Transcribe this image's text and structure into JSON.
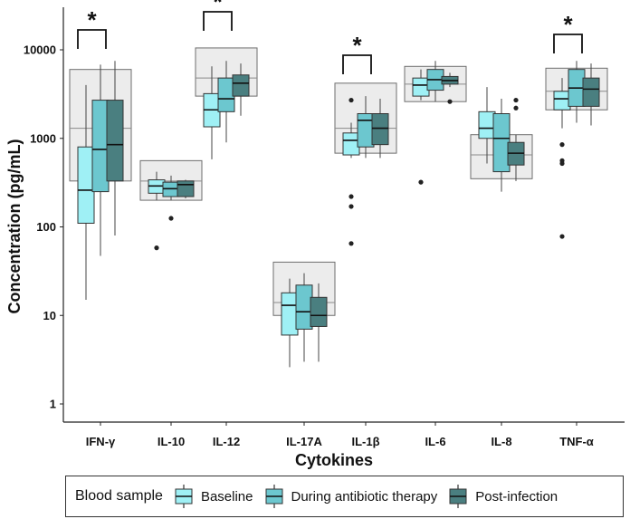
{
  "chart_data": {
    "type": "boxplot",
    "ylabel": "Concentration (pg/mL)",
    "xlabel": "Cytokines",
    "yscale": "log10",
    "ylim": [
      0.6,
      30000
    ],
    "yticks": [
      1,
      10,
      100,
      1000,
      10000
    ],
    "ytick_labels": [
      "1",
      "10",
      "100",
      "1000",
      "10000"
    ],
    "categories": [
      "IFN-γ",
      "IL-10",
      "IL-12",
      "IL-17A",
      "IL-1β",
      "IL-6",
      "IL-8",
      "TNF-α"
    ],
    "legend": {
      "title": "Blood sample",
      "position": "bottom"
    },
    "series": [
      {
        "name": "Baseline",
        "color": "#9ff0f5",
        "boxes": [
          {
            "whislo": 15,
            "q1": 110,
            "med": 260,
            "q3": 800,
            "whishi": 4000,
            "fliers": []
          },
          {
            "whislo": 200,
            "q1": 240,
            "med": 290,
            "q3": 340,
            "whishi": 420,
            "fliers": [
              58
            ]
          },
          {
            "whislo": 580,
            "q1": 1350,
            "med": 2100,
            "q3": 3200,
            "whishi": 6500,
            "fliers": []
          },
          {
            "whislo": 2.6,
            "q1": 6,
            "med": 13,
            "q3": 18,
            "whishi": 26,
            "fliers": []
          },
          {
            "whislo": 600,
            "q1": 650,
            "med": 950,
            "q3": 1150,
            "whishi": 1500,
            "fliers": [
              2700,
              220,
              170,
              65
            ]
          },
          {
            "whislo": 2700,
            "q1": 3000,
            "med": 4000,
            "q3": 4800,
            "whishi": 6000,
            "fliers": [
              320
            ]
          },
          {
            "whislo": 520,
            "q1": 1000,
            "med": 1300,
            "q3": 2000,
            "whishi": 3800,
            "fliers": []
          },
          {
            "whislo": 1300,
            "q1": 2100,
            "med": 2800,
            "q3": 3400,
            "whishi": 4800,
            "fliers": [
              850,
              560,
              520,
              78
            ]
          }
        ]
      },
      {
        "name": "During antibiotic therapy",
        "color": "#6cc7cf",
        "boxes": [
          {
            "whislo": 47,
            "q1": 250,
            "med": 750,
            "q3": 2700,
            "whishi": 6800,
            "fliers": []
          },
          {
            "whislo": 200,
            "q1": 220,
            "med": 270,
            "q3": 320,
            "whishi": 380,
            "fliers": [
              125
            ]
          },
          {
            "whislo": 900,
            "q1": 2000,
            "med": 2800,
            "q3": 4800,
            "whishi": 7500,
            "fliers": []
          },
          {
            "whislo": 3,
            "q1": 7,
            "med": 11,
            "q3": 22,
            "whishi": 30,
            "fliers": []
          },
          {
            "whislo": 600,
            "q1": 800,
            "med": 1600,
            "q3": 1900,
            "whishi": 3000,
            "fliers": []
          },
          {
            "whislo": 2600,
            "q1": 3500,
            "med": 4600,
            "q3": 6000,
            "whishi": 7500,
            "fliers": []
          },
          {
            "whislo": 250,
            "q1": 420,
            "med": 1000,
            "q3": 1900,
            "whishi": 2800,
            "fliers": []
          },
          {
            "whislo": 1500,
            "q1": 2300,
            "med": 3700,
            "q3": 6000,
            "whishi": 7500,
            "fliers": []
          }
        ]
      },
      {
        "name": "Post-infection",
        "color": "#4a7f80",
        "boxes": [
          {
            "whislo": 80,
            "q1": 330,
            "med": 850,
            "q3": 2700,
            "whishi": 7500,
            "fliers": []
          },
          {
            "whislo": 210,
            "q1": 220,
            "med": 300,
            "q3": 330,
            "whishi": 340,
            "fliers": []
          },
          {
            "whislo": 1800,
            "q1": 3000,
            "med": 4200,
            "q3": 5200,
            "whishi": 7000,
            "fliers": []
          },
          {
            "whislo": 3,
            "q1": 7.5,
            "med": 10,
            "q3": 16,
            "whishi": 23,
            "fliers": []
          },
          {
            "whislo": 600,
            "q1": 850,
            "med": 1300,
            "q3": 1900,
            "whishi": 2800,
            "fliers": []
          },
          {
            "whislo": 3800,
            "q1": 4100,
            "med": 4500,
            "q3": 5000,
            "whishi": 5500,
            "fliers": [
              2600
            ]
          },
          {
            "whislo": 330,
            "q1": 500,
            "med": 680,
            "q3": 900,
            "whishi": 1100,
            "fliers": [
              2700,
              2200
            ]
          },
          {
            "whislo": 1400,
            "q1": 2300,
            "med": 3600,
            "q3": 4800,
            "whishi": 7000,
            "fliers": []
          }
        ]
      }
    ],
    "overall_boxes": [
      {
        "q1": 330,
        "med": 1300,
        "q3": 6000
      },
      {
        "q1": 200,
        "med": 330,
        "q3": 560
      },
      {
        "q1": 3000,
        "med": 4800,
        "q3": 10500
      },
      {
        "q1": 10,
        "med": 14,
        "q3": 40
      },
      {
        "q1": 680,
        "med": 1300,
        "q3": 4200
      },
      {
        "q1": 2600,
        "med": 4100,
        "q3": 6500
      },
      {
        "q1": 350,
        "med": 650,
        "q3": 1100
      },
      {
        "q1": 2100,
        "med": 3400,
        "q3": 6200
      }
    ],
    "significance": [
      {
        "category": "IFN-γ",
        "label": "*"
      },
      {
        "category": "IL-12",
        "label": "*"
      },
      {
        "category": "IL-1β",
        "label": "*"
      },
      {
        "category": "TNF-α",
        "label": "*"
      }
    ]
  }
}
